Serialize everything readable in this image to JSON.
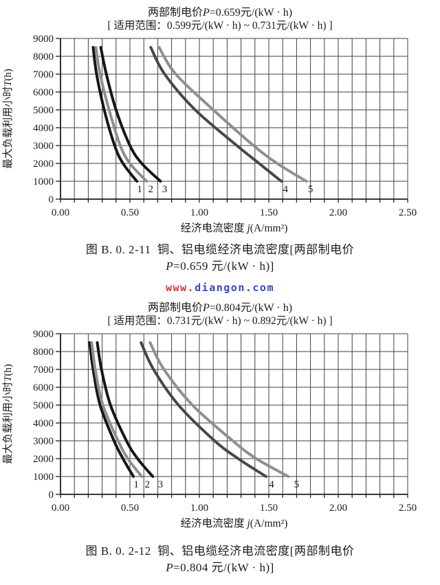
{
  "watermark": {
    "www": "www.",
    "domain": "diangon.com"
  },
  "colors": {
    "watermark_www": "#d5383c",
    "watermark_domain": "#3948c2",
    "grid": "#3f3f3f",
    "axis": "#1c1c1c",
    "curve_black": "#161616",
    "curve_gray": "#8f8f8f",
    "curve_darkgray": "#474747"
  },
  "chart_data": [
    {
      "type": "line",
      "title_parts": [
        "两部制电价",
        "P",
        "=0.659元/(kW · h)"
      ],
      "subtitle": "[ 适用范围：0.599元/(kW · h) ~ 0.731元/(kW · h) ]",
      "xlabel_parts": [
        "经济电流密度 ",
        "j",
        "(A/mm²)"
      ],
      "ylabel_parts": [
        "最大负载利用小时",
        "T",
        "(h)"
      ],
      "xlim": [
        0,
        2.5
      ],
      "ylim": [
        0,
        9000
      ],
      "x_tick_labels": [
        "0.00",
        "0.50",
        "1.00",
        "1.50",
        "2.00",
        "2.50"
      ],
      "x_major_step": 0.5,
      "x_minor_step": 0.1,
      "y_tick_step": 1000,
      "grid": true,
      "series": [
        {
          "name": "1",
          "color": "#161616",
          "label_j": 0.57,
          "points": [
            [
              0.235,
              8500
            ],
            [
              0.26,
              7000
            ],
            [
              0.315,
              5000
            ],
            [
              0.39,
              3000
            ],
            [
              0.45,
              2000
            ],
            [
              0.55,
              1000
            ]
          ]
        },
        {
          "name": "2",
          "color": "#8f8f8f",
          "label_j": 0.65,
          "points": [
            [
              0.255,
              8500
            ],
            [
              0.285,
              7000
            ],
            [
              0.35,
              5000
            ],
            [
              0.43,
              3000
            ],
            [
              0.5,
              2000
            ],
            [
              0.62,
              1000
            ]
          ]
        },
        {
          "name": "3",
          "color": "#161616",
          "label_j": 0.75,
          "points": [
            [
              0.29,
              8500
            ],
            [
              0.33,
              7000
            ],
            [
              0.4,
              5000
            ],
            [
              0.5,
              3000
            ],
            [
              0.585,
              2000
            ],
            [
              0.72,
              1000
            ]
          ]
        },
        {
          "name": "4",
          "color": "#474747",
          "label_j": 1.62,
          "points": [
            [
              0.65,
              8500
            ],
            [
              0.75,
              7000
            ],
            [
              0.97,
              5000
            ],
            [
              1.27,
              3000
            ],
            [
              1.43,
              2000
            ],
            [
              1.59,
              1000
            ]
          ]
        },
        {
          "name": "5",
          "color": "#8f8f8f",
          "label_j": 1.8,
          "points": [
            [
              0.71,
              8500
            ],
            [
              0.83,
              7000
            ],
            [
              1.1,
              5000
            ],
            [
              1.39,
              3000
            ],
            [
              1.56,
              2000
            ],
            [
              1.77,
              1000
            ]
          ]
        }
      ],
      "caption_line1": "图 B. 0. 2-11  铜、铝电缆经济电流密度[两部制电价",
      "caption_p": "P",
      "caption_rest": "=0.659 元/(kW · h)]"
    },
    {
      "type": "line",
      "title_parts": [
        "两部制电价",
        "P",
        "=0.804元/(kW · h)"
      ],
      "subtitle": "[ 适用范围：0.731元/(kW · h) ~ 0.892元/(kW · h) ]",
      "xlabel_parts": [
        "经济电流密度 ",
        "j",
        "(A/mm²)"
      ],
      "ylabel_parts": [
        "最大负载利用小时",
        "T",
        "(h)"
      ],
      "xlim": [
        0,
        2.5
      ],
      "ylim": [
        0,
        9000
      ],
      "x_tick_labels": [
        "0.00",
        "0.50",
        "1.00",
        "1.50",
        "2.00",
        "2.50"
      ],
      "x_major_step": 0.5,
      "x_minor_step": 0.1,
      "y_tick_step": 1000,
      "grid": true,
      "series": [
        {
          "name": "1",
          "color": "#161616",
          "label_j": 0.545,
          "points": [
            [
              0.21,
              8500
            ],
            [
              0.235,
              7000
            ],
            [
              0.285,
              5000
            ],
            [
              0.385,
              3000
            ],
            [
              0.45,
              2000
            ],
            [
              0.525,
              1000
            ]
          ]
        },
        {
          "name": "2",
          "color": "#8f8f8f",
          "label_j": 0.625,
          "points": [
            [
              0.225,
              8500
            ],
            [
              0.25,
              7000
            ],
            [
              0.305,
              5000
            ],
            [
              0.415,
              3000
            ],
            [
              0.485,
              2000
            ],
            [
              0.585,
              1000
            ]
          ]
        },
        {
          "name": "3",
          "color": "#161616",
          "label_j": 0.72,
          "points": [
            [
              0.265,
              8500
            ],
            [
              0.295,
              7000
            ],
            [
              0.36,
              5000
            ],
            [
              0.475,
              3000
            ],
            [
              0.555,
              2000
            ],
            [
              0.665,
              1000
            ]
          ]
        },
        {
          "name": "4",
          "color": "#474747",
          "label_j": 1.52,
          "points": [
            [
              0.58,
              8500
            ],
            [
              0.67,
              7000
            ],
            [
              0.85,
              5000
            ],
            [
              1.11,
              3000
            ],
            [
              1.28,
              2000
            ],
            [
              1.48,
              1000
            ]
          ]
        },
        {
          "name": "5",
          "color": "#8f8f8f",
          "label_j": 1.7,
          "points": [
            [
              0.645,
              8500
            ],
            [
              0.745,
              7000
            ],
            [
              0.95,
              5000
            ],
            [
              1.24,
              3000
            ],
            [
              1.41,
              2000
            ],
            [
              1.64,
              1000
            ]
          ]
        }
      ],
      "caption_line1": "图 B. 0. 2-12  铜、铝电缆经济电流密度[两部制电价",
      "caption_p": "P",
      "caption_rest": "=0.804 元/(kW · h)]"
    }
  ]
}
